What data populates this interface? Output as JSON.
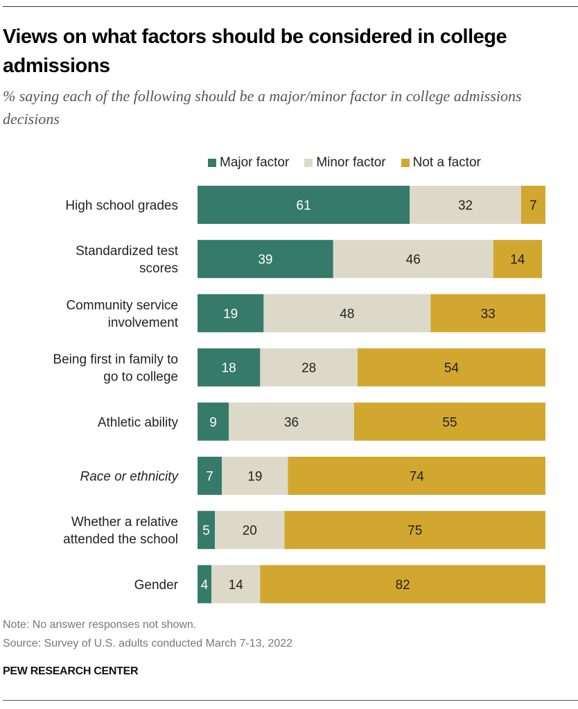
{
  "title": "Views on what factors should be considered in college admissions",
  "subtitle": "% saying each of the following should be a major/minor factor in college admissions decisions",
  "note": "Note: No answer responses not shown.",
  "source": "Source: Survey of U.S. adults conducted March 7-13, 2022",
  "brand": "PEW RESEARCH CENTER",
  "chart_data": {
    "type": "bar",
    "orientation": "horizontal",
    "stacked": true,
    "xlim": [
      0,
      100
    ],
    "legend_placement": "top",
    "grid": false,
    "categories": [
      {
        "label": "High school grades",
        "italic": false
      },
      {
        "label": "Standardized test scores",
        "italic": false
      },
      {
        "label": "Community service involvement",
        "italic": false
      },
      {
        "label": "Being first in family to go to college",
        "italic": false
      },
      {
        "label": "Athletic ability",
        "italic": false
      },
      {
        "label": "Race or ethnicity",
        "italic": true
      },
      {
        "label": "Whether a relative attended the school",
        "italic": false
      },
      {
        "label": "Gender",
        "italic": false
      }
    ],
    "series": [
      {
        "name": "Major factor",
        "color": "#367a69",
        "label_color": "#ffffff",
        "values": [
          61,
          39,
          19,
          18,
          9,
          7,
          5,
          4
        ]
      },
      {
        "name": "Minor factor",
        "color": "#dcd9c8",
        "label_color": "#222222",
        "values": [
          32,
          46,
          48,
          28,
          36,
          19,
          20,
          14
        ]
      },
      {
        "name": "Not a factor",
        "color": "#d1a72f",
        "label_color": "#222222",
        "values": [
          7,
          14,
          33,
          54,
          55,
          74,
          75,
          82
        ]
      }
    ]
  }
}
